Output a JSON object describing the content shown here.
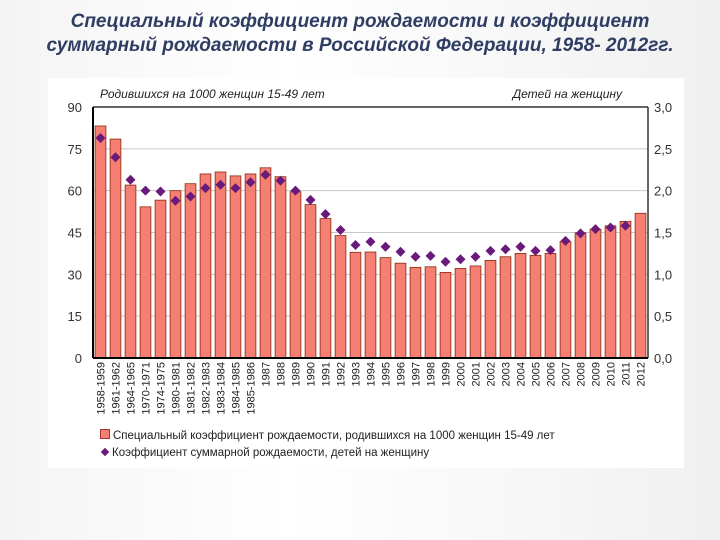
{
  "title_line1": "Специальный коэффициент рождаемости и коэффициент",
  "title_line2": "суммарный рождаемости в Российской Федерации, 1958- 2012гг.",
  "chart_data": {
    "type": "bar+scatter",
    "left_axis_title": "Родившихся на 1000 женщин 15-49 лет",
    "right_axis_title": "Детей на женщину",
    "ylim_left": [
      0,
      90
    ],
    "yticks_left": [
      "0",
      "15",
      "30",
      "45",
      "60",
      "75",
      "90"
    ],
    "ylim_right": [
      0,
      3
    ],
    "yticks_right": [
      "0,0",
      "0,5",
      "1,0",
      "1,5",
      "2,0",
      "2,5",
      "3,0"
    ],
    "categories": [
      "1958-1959",
      "1961-1962",
      "1964-1965",
      "1970-1971",
      "1974-1975",
      "1980-1981",
      "1981-1982",
      "1982-1983",
      "1983-1984",
      "1984-1985",
      "1985-1986",
      "1987",
      "1988",
      "1989",
      "1990",
      "1991",
      "1992",
      "1993",
      "1994",
      "1995",
      "1996",
      "1997",
      "1998",
      "1999",
      "2000",
      "2001",
      "2002",
      "2003",
      "2004",
      "2005",
      "2006",
      "2007",
      "2008",
      "2009",
      "2010",
      "2011",
      "2012"
    ],
    "series": [
      {
        "name": "Специальный коэффициент рождаемости, родившихся на 1000 женщин 15-49 лет",
        "axis": "left",
        "type": "bar",
        "color": "#f47f72",
        "values": [
          83.2,
          78.5,
          62,
          54.2,
          56.6,
          60,
          62.5,
          66,
          66.7,
          65.3,
          66,
          68.2,
          65,
          59.6,
          55,
          50,
          43.9,
          37.9,
          38,
          36,
          34,
          32.5,
          32.7,
          30.7,
          32.1,
          33,
          35,
          36.3,
          37.5,
          36.8,
          37.5,
          41.8,
          44.9,
          46.2,
          47.4,
          49,
          51.9
        ]
      },
      {
        "name": "Коэффициент суммарной рождаемости, детей на женщину",
        "axis": "right",
        "type": "scatter",
        "color": "#6a1a7a",
        "values": [
          2.63,
          2.4,
          2.13,
          2.0,
          1.99,
          1.88,
          1.93,
          2.03,
          2.07,
          2.03,
          2.1,
          2.19,
          2.12,
          2.0,
          1.89,
          1.72,
          1.53,
          1.35,
          1.39,
          1.33,
          1.27,
          1.21,
          1.22,
          1.15,
          1.18,
          1.21,
          1.28,
          1.3,
          1.33,
          1.28,
          1.29,
          1.4,
          1.49,
          1.54,
          1.56,
          1.58,
          null
        ]
      }
    ]
  }
}
